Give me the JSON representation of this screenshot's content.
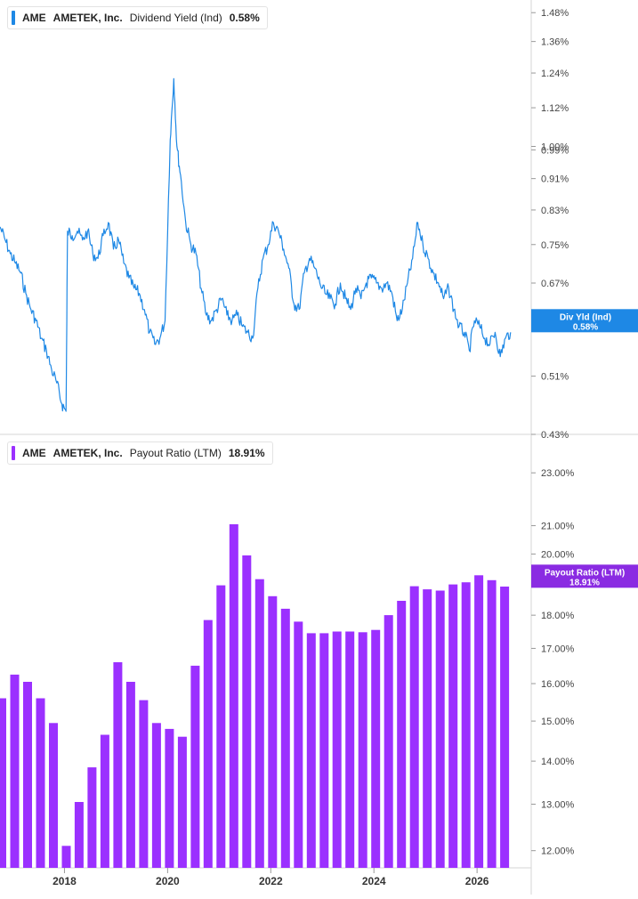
{
  "colors": {
    "yield_line": "#1e88e5",
    "yield_flag": "#1e88e5",
    "payout_bars": "#9b30ff",
    "payout_flag": "#8a2be2",
    "axis_text": "#444444",
    "divider": "#d6d6d6"
  },
  "legend_top": {
    "ticker": "AME",
    "company": "AMETEK, Inc.",
    "metric": "Dividend Yield (Ind)",
    "value": "0.58%"
  },
  "legend_bottom": {
    "ticker": "AME",
    "company": "AMETEK, Inc.",
    "metric": "Payout Ratio (LTM)",
    "value": "18.91%"
  },
  "x_axis": {
    "tick_labels": [
      "2018",
      "2020",
      "2022",
      "2024",
      "2026"
    ],
    "tick_years": [
      2018,
      2020,
      2022,
      2024,
      2026
    ]
  },
  "chart_data": [
    {
      "type": "line",
      "series": [
        {
          "name": "Div Yld (Ind)"
        }
      ],
      "last_label": "Div Yld (Ind)",
      "last_value": "0.58%",
      "y_ticks": [
        "1.48%",
        "1.36%",
        "1.24%",
        "1.12%",
        "1.00%",
        "0.99%",
        "0.91%",
        "0.83%",
        "0.75%",
        "0.67%",
        "0.51%",
        "0.43%"
      ],
      "y_tick_values": [
        1.48,
        1.36,
        1.24,
        1.12,
        1.0,
        0.99,
        0.91,
        0.83,
        0.75,
        0.67,
        0.51,
        0.43
      ],
      "ylim": [
        0.43,
        1.52
      ],
      "xlim": [
        2016.75,
        2027.05
      ],
      "y_scale": "log",
      "grid": false,
      "x": [
        2016.75,
        2016.85,
        2016.95,
        2017.05,
        2017.15,
        2017.25,
        2017.35,
        2017.45,
        2017.55,
        2017.65,
        2017.75,
        2017.85,
        2017.95,
        2018.03,
        2018.06,
        2018.15,
        2018.25,
        2018.35,
        2018.45,
        2018.55,
        2018.65,
        2018.75,
        2018.85,
        2018.95,
        2019.05,
        2019.15,
        2019.25,
        2019.35,
        2019.45,
        2019.55,
        2019.65,
        2019.75,
        2019.85,
        2019.95,
        2020.05,
        2020.12,
        2020.18,
        2020.25,
        2020.35,
        2020.45,
        2020.55,
        2020.65,
        2020.75,
        2020.85,
        2020.95,
        2021.05,
        2021.15,
        2021.25,
        2021.35,
        2021.45,
        2021.55,
        2021.65,
        2021.75,
        2021.85,
        2021.95,
        2022.05,
        2022.15,
        2022.25,
        2022.35,
        2022.45,
        2022.55,
        2022.65,
        2022.75,
        2022.85,
        2022.95,
        2023.05,
        2023.15,
        2023.25,
        2023.35,
        2023.45,
        2023.55,
        2023.65,
        2023.75,
        2023.85,
        2023.95,
        2024.05,
        2024.15,
        2024.25,
        2024.35,
        2024.45,
        2024.55,
        2024.65,
        2024.75,
        2024.85,
        2024.95,
        2025.05,
        2025.15,
        2025.25,
        2025.35,
        2025.45,
        2025.55,
        2025.65,
        2025.75,
        2025.85,
        2025.95,
        2026.05,
        2026.15,
        2026.25,
        2026.35,
        2026.45,
        2026.55,
        2026.65
      ],
      "y": [
        0.79,
        0.76,
        0.73,
        0.71,
        0.69,
        0.65,
        0.62,
        0.6,
        0.57,
        0.55,
        0.52,
        0.5,
        0.47,
        0.46,
        0.78,
        0.77,
        0.78,
        0.76,
        0.78,
        0.73,
        0.72,
        0.77,
        0.8,
        0.74,
        0.76,
        0.71,
        0.68,
        0.66,
        0.65,
        0.62,
        0.58,
        0.56,
        0.57,
        0.6,
        1.02,
        1.22,
        1.0,
        0.92,
        0.8,
        0.75,
        0.73,
        0.66,
        0.61,
        0.6,
        0.62,
        0.64,
        0.61,
        0.6,
        0.61,
        0.59,
        0.58,
        0.57,
        0.66,
        0.72,
        0.75,
        0.8,
        0.78,
        0.74,
        0.7,
        0.63,
        0.62,
        0.69,
        0.72,
        0.7,
        0.67,
        0.65,
        0.64,
        0.63,
        0.67,
        0.64,
        0.62,
        0.66,
        0.64,
        0.67,
        0.68,
        0.67,
        0.66,
        0.67,
        0.65,
        0.6,
        0.62,
        0.67,
        0.72,
        0.8,
        0.75,
        0.72,
        0.69,
        0.67,
        0.64,
        0.66,
        0.62,
        0.59,
        0.58,
        0.55,
        0.6,
        0.59,
        0.57,
        0.56,
        0.58,
        0.54,
        0.57,
        0.58
      ]
    },
    {
      "type": "bar",
      "series": [
        {
          "name": "Payout Ratio (LTM)"
        }
      ],
      "last_label": "Payout Ratio (LTM)",
      "last_value": "18.91%",
      "y_ticks": [
        "23.00%",
        "21.00%",
        "20.00%",
        "18.00%",
        "17.00%",
        "16.00%",
        "15.00%",
        "14.00%",
        "13.00%",
        "12.00%"
      ],
      "y_tick_values": [
        23,
        21,
        20,
        18,
        17,
        16,
        15,
        14,
        13,
        12
      ],
      "ylim": [
        11.65,
        24.5
      ],
      "y_scale": "log",
      "grid": false,
      "x": [
        2016.75,
        2017.0,
        2017.25,
        2017.5,
        2017.75,
        2018.0,
        2018.25,
        2018.5,
        2018.75,
        2019.0,
        2019.25,
        2019.5,
        2019.75,
        2020.0,
        2020.25,
        2020.5,
        2020.75,
        2021.0,
        2021.25,
        2021.5,
        2021.75,
        2022.0,
        2022.25,
        2022.5,
        2022.75,
        2023.0,
        2023.25,
        2023.5,
        2023.75,
        2024.0,
        2024.25,
        2024.5,
        2024.75,
        2025.0,
        2025.25,
        2025.5,
        2025.75,
        2026.0,
        2026.25,
        2026.5
      ],
      "values": [
        15.6,
        16.25,
        16.05,
        15.6,
        14.95,
        12.1,
        13.05,
        13.85,
        14.65,
        16.6,
        16.05,
        15.55,
        14.95,
        14.8,
        14.6,
        16.5,
        17.85,
        18.95,
        21.05,
        19.95,
        19.15,
        18.6,
        18.2,
        17.8,
        17.45,
        17.45,
        17.5,
        17.5,
        17.48,
        17.55,
        18.0,
        18.45,
        18.92,
        18.82,
        18.78,
        18.98,
        19.05,
        19.28,
        19.12,
        18.91
      ]
    }
  ]
}
